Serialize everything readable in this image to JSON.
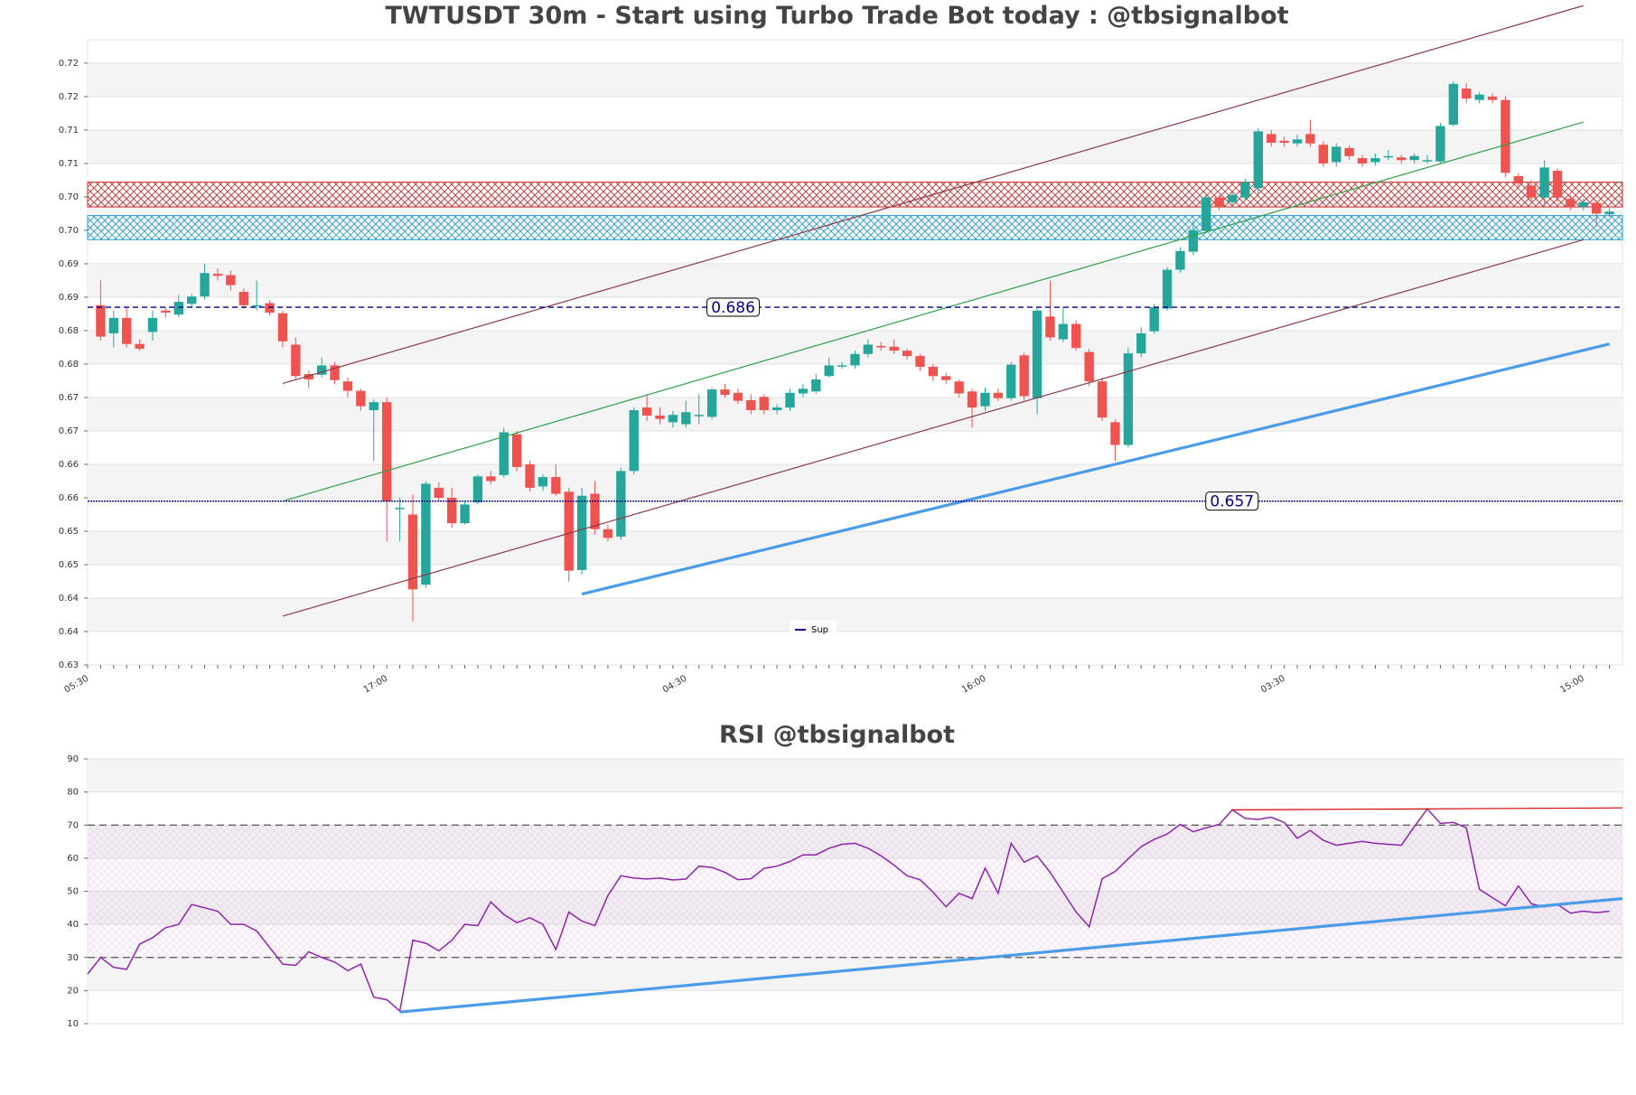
{
  "chart_data": [
    {
      "type": "candlestick",
      "title": "TWTUSDT 30m - Start using Turbo Trade Bot today : @tbsignalbot",
      "categories": [
        "05:30",
        null,
        null,
        null,
        null,
        null,
        null,
        null,
        null,
        null,
        null,
        null,
        null,
        null,
        null,
        null,
        null,
        null,
        null,
        null,
        null,
        null,
        null,
        "17:00",
        null,
        null,
        null,
        null,
        null,
        null,
        null,
        null,
        null,
        null,
        null,
        null,
        null,
        null,
        null,
        null,
        null,
        null,
        null,
        null,
        null,
        null,
        "04:30",
        null,
        null,
        null,
        null,
        null,
        null,
        null,
        null,
        null,
        null,
        null,
        null,
        null,
        null,
        null,
        null,
        null,
        null,
        null,
        null,
        null,
        null,
        "16:00",
        null,
        null,
        null,
        null,
        null,
        null,
        null,
        null,
        null,
        null,
        null,
        null,
        null,
        null,
        null,
        null,
        null,
        null,
        null,
        null,
        null,
        null,
        "03:30",
        null,
        null,
        null,
        null,
        null,
        null,
        null,
        null,
        null,
        null,
        null,
        null,
        null,
        null,
        null,
        null,
        null,
        null,
        null,
        null,
        null,
        null,
        "15:00",
        null,
        null
      ],
      "open": [
        null,
        0.6863,
        0.6821,
        0.6844,
        0.6805,
        0.6823,
        0.6855,
        0.6849,
        0.6865,
        0.6876,
        0.691,
        0.6908,
        0.6883,
        0.6862,
        0.6866,
        0.6851,
        0.6804,
        0.676,
        0.6759,
        0.6773,
        0.6749,
        0.6735,
        0.6706,
        0.6718,
        0.6559,
        0.655,
        0.6445,
        0.659,
        0.6575,
        0.6537,
        0.6568,
        0.6607,
        0.6609,
        0.667,
        0.6625,
        0.6592,
        0.6606,
        0.6584,
        0.6467,
        0.6581,
        0.6528,
        0.6517,
        0.6615,
        0.671,
        0.6698,
        0.6688,
        0.6685,
        0.6698,
        0.6696,
        0.6737,
        0.6732,
        0.6721,
        0.6726,
        0.6706,
        0.671,
        0.6731,
        0.6734,
        0.6757,
        0.6771,
        0.6773,
        0.679,
        0.6802,
        0.6801,
        0.6795,
        0.6787,
        0.6771,
        0.6757,
        0.6749,
        0.6734,
        0.6712,
        0.6732,
        0.6724,
        0.6788,
        0.6724,
        0.6846,
        0.6812,
        0.6835,
        0.6793,
        0.6749,
        0.6688,
        0.6654,
        0.6791,
        0.6824,
        0.6858,
        0.6916,
        0.6943,
        0.6974,
        0.7024,
        0.7017,
        0.7024,
        0.7038,
        0.7119,
        0.7109,
        0.7105,
        0.7119,
        0.7103,
        0.7077,
        0.7098,
        0.7083,
        0.7077,
        0.7086,
        0.7084,
        0.708,
        0.7078,
        0.7078,
        0.7133,
        0.7187,
        0.717,
        0.7175,
        0.717,
        0.7056,
        0.7042,
        0.7024,
        0.7064,
        0.7022,
        0.701,
        0.7016,
        0.6999
      ],
      "high": [
        null,
        0.69,
        0.6855,
        0.686,
        0.6812,
        0.6855,
        0.686,
        0.6878,
        0.688,
        0.6925,
        0.6918,
        0.6915,
        0.6888,
        0.69,
        0.687,
        0.6855,
        0.6815,
        0.6765,
        0.6785,
        0.6778,
        0.6755,
        0.6738,
        0.6722,
        0.6725,
        0.6575,
        0.658,
        0.66,
        0.6598,
        0.659,
        0.657,
        0.661,
        0.6615,
        0.668,
        0.6675,
        0.663,
        0.661,
        0.6625,
        0.659,
        0.659,
        0.66,
        0.6535,
        0.662,
        0.671,
        0.673,
        0.671,
        0.6705,
        0.672,
        0.673,
        0.674,
        0.6745,
        0.6738,
        0.673,
        0.673,
        0.6715,
        0.6738,
        0.6745,
        0.676,
        0.6785,
        0.6778,
        0.6795,
        0.6812,
        0.6808,
        0.6812,
        0.6798,
        0.679,
        0.6775,
        0.6762,
        0.6752,
        0.6738,
        0.674,
        0.6738,
        0.6778,
        0.6792,
        0.686,
        0.69,
        0.686,
        0.684,
        0.6798,
        0.6755,
        0.6692,
        0.68,
        0.683,
        0.6865,
        0.692,
        0.695,
        0.699,
        0.703,
        0.7028,
        0.7032,
        0.7052,
        0.7128,
        0.7125,
        0.7115,
        0.7118,
        0.714,
        0.7108,
        0.7105,
        0.7102,
        0.7088,
        0.709,
        0.7095,
        0.7088,
        0.709,
        0.7088,
        0.7136,
        0.7198,
        0.7195,
        0.7182,
        0.718,
        0.7175,
        0.706,
        0.705,
        0.708,
        0.7068,
        0.7028,
        0.7022,
        0.702,
        0.7008
      ],
      "low": [
        null,
        0.681,
        0.68,
        0.68,
        0.6795,
        0.681,
        0.6845,
        0.6845,
        0.686,
        0.6872,
        0.69,
        0.6885,
        0.6858,
        0.6855,
        0.6848,
        0.68,
        0.6752,
        0.674,
        0.6755,
        0.6745,
        0.6725,
        0.6705,
        0.663,
        0.651,
        0.651,
        0.639,
        0.644,
        0.657,
        0.653,
        0.6535,
        0.6565,
        0.6595,
        0.6605,
        0.6615,
        0.6585,
        0.6585,
        0.6578,
        0.645,
        0.646,
        0.652,
        0.651,
        0.6512,
        0.661,
        0.669,
        0.6685,
        0.668,
        0.668,
        0.6685,
        0.6692,
        0.6725,
        0.6715,
        0.67,
        0.67,
        0.67,
        0.6705,
        0.6725,
        0.673,
        0.6755,
        0.6768,
        0.6768,
        0.6785,
        0.6795,
        0.679,
        0.6782,
        0.6765,
        0.675,
        0.6745,
        0.6725,
        0.668,
        0.6705,
        0.672,
        0.672,
        0.672,
        0.67,
        0.681,
        0.6808,
        0.6795,
        0.6742,
        0.669,
        0.663,
        0.665,
        0.6785,
        0.682,
        0.6855,
        0.6912,
        0.6938,
        0.697,
        0.7005,
        0.701,
        0.702,
        0.703,
        0.71,
        0.71,
        0.71,
        0.71,
        0.707,
        0.707,
        0.708,
        0.707,
        0.7072,
        0.708,
        0.7075,
        0.7075,
        0.7075,
        0.7075,
        0.713,
        0.7165,
        0.7165,
        0.7165,
        0.7055,
        0.704,
        0.7015,
        0.701,
        0.7018,
        0.7005,
        0.7005,
        0.698,
        0.6995
      ],
      "close": [
        null,
        0.6816,
        0.6844,
        0.6805,
        0.6798,
        0.6844,
        0.6852,
        0.6868,
        0.6876,
        0.6911,
        0.6907,
        0.6893,
        0.6863,
        0.6863,
        0.6852,
        0.6809,
        0.6757,
        0.6752,
        0.6773,
        0.6751,
        0.6735,
        0.6712,
        0.6718,
        0.657,
        0.656,
        0.6438,
        0.6596,
        0.6575,
        0.6537,
        0.6565,
        0.6607,
        0.66,
        0.6673,
        0.6621,
        0.659,
        0.6606,
        0.6581,
        0.6466,
        0.6578,
        0.6528,
        0.6515,
        0.6615,
        0.6706,
        0.6698,
        0.6693,
        0.6699,
        0.6703,
        0.6699,
        0.6737,
        0.6729,
        0.672,
        0.6706,
        0.6706,
        0.671,
        0.6732,
        0.6738,
        0.6752,
        0.6773,
        0.6773,
        0.679,
        0.6804,
        0.6801,
        0.6795,
        0.6787,
        0.6771,
        0.6757,
        0.6751,
        0.6731,
        0.671,
        0.6732,
        0.6724,
        0.6774,
        0.6727,
        0.6855,
        0.6815,
        0.6835,
        0.6799,
        0.6749,
        0.6695,
        0.6654,
        0.6791,
        0.6821,
        0.686,
        0.6916,
        0.6944,
        0.6975,
        0.7024,
        0.701,
        0.7028,
        0.7047,
        0.7123,
        0.7106,
        0.7106,
        0.7111,
        0.7105,
        0.7075,
        0.71,
        0.7086,
        0.7075,
        0.7083,
        0.7086,
        0.708,
        0.7086,
        0.708,
        0.7131,
        0.7194,
        0.7172,
        0.7178,
        0.717,
        0.7061,
        0.7045,
        0.7024,
        0.7069,
        0.7024,
        0.7011,
        0.7017,
        0.7,
        0.7003
      ],
      "up_color": "#26a69a",
      "down_color": "#ef5350",
      "ylim": [
        0.6325,
        0.726
      ],
      "yticks": [
        {
          "value": 0.6325,
          "label": "0.63"
        },
        {
          "value": 0.6375,
          "label": "0.64"
        },
        {
          "value": 0.6425,
          "label": "0.64"
        },
        {
          "value": 0.6475,
          "label": "0.65"
        },
        {
          "value": 0.6525,
          "label": "0.65"
        },
        {
          "value": 0.6575,
          "label": "0.66"
        },
        {
          "value": 0.6625,
          "label": "0.66"
        },
        {
          "value": 0.6675,
          "label": "0.67"
        },
        {
          "value": 0.6725,
          "label": "0.67"
        },
        {
          "value": 0.6775,
          "label": "0.68"
        },
        {
          "value": 0.6825,
          "label": "0.68"
        },
        {
          "value": 0.6875,
          "label": "0.69"
        },
        {
          "value": 0.6925,
          "label": "0.69"
        },
        {
          "value": 0.6975,
          "label": "0.70"
        },
        {
          "value": 0.7025,
          "label": "0.70"
        },
        {
          "value": 0.7075,
          "label": "0.71"
        },
        {
          "value": 0.7125,
          "label": "0.71"
        },
        {
          "value": 0.7175,
          "label": "0.72"
        },
        {
          "value": 0.7225,
          "label": "0.72"
        }
      ],
      "grid": true,
      "hlines": [
        {
          "value": 0.686,
          "color": "#00008b"
        },
        {
          "name": "Sup",
          "value": 0.657,
          "color": "#00008b"
        }
      ],
      "zones": [
        {
          "from": 0.701,
          "to": 0.7047,
          "color": "#c62828"
        },
        {
          "from": 0.6961,
          "to": 0.6997,
          "color": "#1e9ad0"
        }
      ],
      "trendlines": [
        {
          "x": [
            15,
            115
          ],
          "values": [
            0.6746,
            0.7311
          ],
          "color": "#8b3a4a"
        },
        {
          "x": [
            15,
            115
          ],
          "values": [
            0.6398,
            0.6961
          ],
          "color": "#8b3a4a"
        },
        {
          "x": [
            15,
            115
          ],
          "values": [
            0.657,
            0.7137
          ],
          "color": "#2e9e4a"
        },
        {
          "x": [
            38,
            117
          ],
          "values": [
            0.6431,
            0.6805
          ],
          "color": "#4a9be8"
        }
      ]
    },
    {
      "type": "line",
      "title": "RSI @tbsignalbot",
      "color": "#8e24aa",
      "values": [
        25,
        30,
        27,
        26.4,
        34,
        36,
        39,
        40,
        46,
        45,
        44,
        40,
        40,
        38,
        33,
        28,
        27.6,
        31.7,
        30,
        28.6,
        26,
        28,
        18,
        17.2,
        13.8,
        35.2,
        34.3,
        32,
        35.2,
        40,
        39.6,
        46.8,
        43,
        40.5,
        42,
        40,
        32.4,
        43.7,
        41,
        39.6,
        48.7,
        54.7,
        54,
        53.7,
        54,
        53.4,
        53.7,
        57.6,
        57.2,
        55.7,
        53.5,
        53.8,
        56.9,
        57.6,
        59,
        61,
        61,
        63,
        64.2,
        64.5,
        63,
        60.7,
        57.9,
        54.7,
        53.5,
        49.7,
        45.3,
        49.4,
        47.8,
        57,
        49.4,
        64.5,
        58.8,
        60.7,
        55.7,
        49.7,
        43.7,
        39.3,
        53.8,
        56,
        59.8,
        63.5,
        65.7,
        67.3,
        70.2,
        68,
        69.2,
        70.2,
        74.6,
        72,
        71.7,
        72.4,
        70.8,
        66,
        68.4,
        65.4,
        63.9,
        64.5,
        65.1,
        64.5,
        64.2,
        63.9,
        69.5,
        74.9,
        70.5,
        70.8,
        69.2,
        50.6,
        48.1,
        45.6,
        51.6,
        46.2,
        45.3,
        46,
        43.4,
        44,
        43.5,
        44
      ],
      "ylim": [
        10,
        90
      ],
      "yticks": [
        10,
        20,
        30,
        40,
        50,
        60,
        70,
        80,
        90
      ],
      "grid": true,
      "hlines": [
        {
          "value": 30,
          "color": "#555555"
        },
        {
          "value": 70,
          "color": "#555555"
        }
      ],
      "trendlines": [
        {
          "x": [
            88,
            118
          ],
          "values": [
            74.6,
            75.2
          ],
          "color": "#d50000"
        },
        {
          "x": [
            24,
            118
          ],
          "values": [
            13.5,
            47.8
          ],
          "color": "#4a9be8"
        }
      ]
    }
  ]
}
